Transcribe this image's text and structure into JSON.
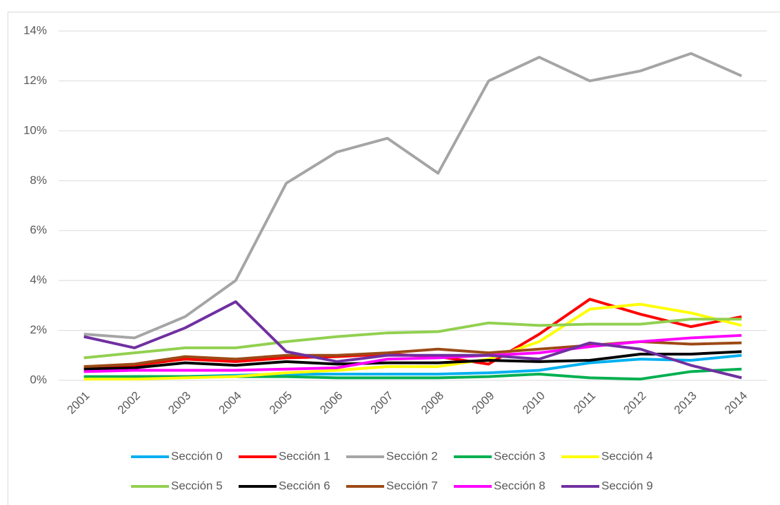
{
  "chart_data": {
    "type": "line",
    "categories": [
      "2001",
      "2002",
      "2003",
      "2004",
      "2005",
      "2006",
      "2007",
      "2008",
      "2009",
      "2010",
      "2011",
      "2012",
      "2013",
      "2014"
    ],
    "ylim": [
      0,
      14
    ],
    "yticks": [
      {
        "value": 0,
        "label": "0%"
      },
      {
        "value": 2,
        "label": "2%"
      },
      {
        "value": 4,
        "label": "4%"
      },
      {
        "value": 6,
        "label": "6%"
      },
      {
        "value": 8,
        "label": "8%"
      },
      {
        "value": 10,
        "label": "10%"
      },
      {
        "value": 12,
        "label": "12%"
      },
      {
        "value": 14,
        "label": "14%"
      }
    ],
    "grid": true,
    "legend": "bottom",
    "series": [
      {
        "name": "Sección 0",
        "color": "#00b0f0",
        "values": [
          0.1,
          0.15,
          0.15,
          0.2,
          0.25,
          0.25,
          0.25,
          0.25,
          0.3,
          0.4,
          0.7,
          0.85,
          0.8,
          1.0
        ]
      },
      {
        "name": "Sección 1",
        "color": "#ff0000",
        "values": [
          0.5,
          0.6,
          0.85,
          0.75,
          0.9,
          0.95,
          1.05,
          0.95,
          0.65,
          1.85,
          3.25,
          2.65,
          2.15,
          2.55
        ]
      },
      {
        "name": "Sección 2",
        "color": "#a5a5a5",
        "values": [
          1.85,
          1.7,
          2.55,
          4.0,
          7.9,
          9.15,
          9.7,
          8.3,
          12.0,
          12.95,
          12.0,
          12.4,
          13.1,
          12.2
        ]
      },
      {
        "name": "Sección 3",
        "color": "#00b050",
        "values": [
          0.15,
          0.15,
          0.15,
          0.15,
          0.15,
          0.1,
          0.1,
          0.1,
          0.15,
          0.25,
          0.1,
          0.05,
          0.35,
          0.45
        ]
      },
      {
        "name": "Sección 4",
        "color": "#ffff00",
        "values": [
          0.05,
          0.05,
          0.1,
          0.15,
          0.3,
          0.4,
          0.55,
          0.55,
          0.85,
          1.55,
          2.85,
          3.05,
          2.7,
          2.2
        ]
      },
      {
        "name": "Sección 5",
        "color": "#92d050",
        "values": [
          0.9,
          1.1,
          1.3,
          1.3,
          1.55,
          1.75,
          1.9,
          1.95,
          2.3,
          2.2,
          2.25,
          2.25,
          2.45,
          2.45
        ]
      },
      {
        "name": "Sección 6",
        "color": "#000000",
        "values": [
          0.45,
          0.5,
          0.7,
          0.6,
          0.75,
          0.65,
          0.7,
          0.7,
          0.8,
          0.75,
          0.8,
          1.05,
          1.05,
          1.15
        ]
      },
      {
        "name": "Sección 7",
        "color": "#9c4a16",
        "values": [
          0.55,
          0.65,
          0.95,
          0.85,
          1.0,
          1.0,
          1.1,
          1.25,
          1.1,
          1.25,
          1.4,
          1.55,
          1.45,
          1.5
        ]
      },
      {
        "name": "Sección 8",
        "color": "#ff00ff",
        "values": [
          0.35,
          0.4,
          0.4,
          0.4,
          0.45,
          0.5,
          0.85,
          0.9,
          1.0,
          1.1,
          1.35,
          1.55,
          1.7,
          1.8
        ]
      },
      {
        "name": "Sección 9",
        "color": "#7030a0",
        "values": [
          1.75,
          1.3,
          2.1,
          3.15,
          1.15,
          0.75,
          1.0,
          1.0,
          1.0,
          0.85,
          1.5,
          1.25,
          0.6,
          0.1
        ]
      }
    ]
  }
}
